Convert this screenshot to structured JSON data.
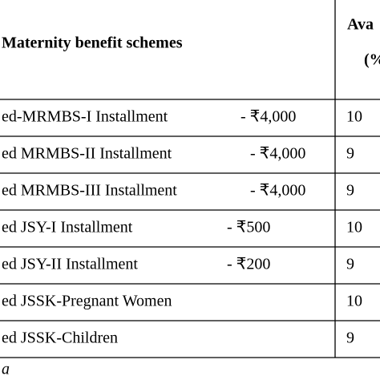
{
  "header": {
    "scheme": "Maternity benefit schemes",
    "availed": [
      "Ava",
      "(%"
    ]
  },
  "table": {
    "rows": [
      [
        "ed-MRMBS-I Installment",
        "- ₹4,000",
        "10"
      ],
      [
        "ed MRMBS-II Installment",
        "- ₹4,000",
        "9"
      ],
      [
        "ed MRMBS-III Installment",
        "- ₹4,000",
        "9"
      ],
      [
        "ed JSY-I Installment",
        "- ₹500",
        "10"
      ],
      [
        "ed JSY-II Installment",
        "- ₹200",
        "9"
      ],
      [
        "ed JSSK-Pregnant Women",
        "",
        "10"
      ],
      [
        "ed JSSK-Children",
        "",
        "9"
      ]
    ]
  },
  "footer": {
    "note": "a"
  }
}
